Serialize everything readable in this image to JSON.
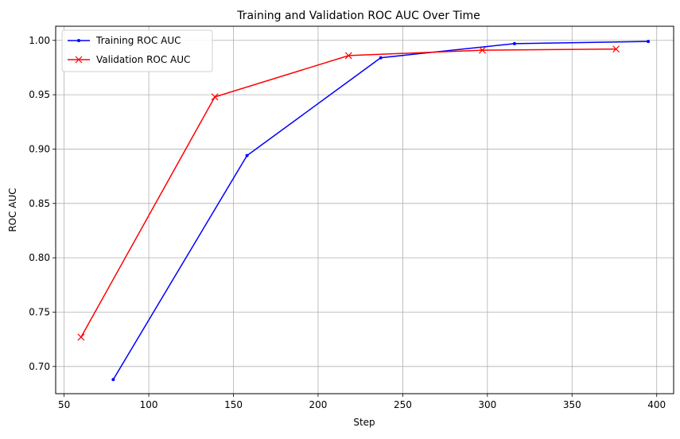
{
  "chart_data": {
    "type": "line",
    "title": "Training and Validation ROC AUC Over Time",
    "xlabel": "Step",
    "ylabel": "ROC AUC",
    "xlim": [
      45,
      410
    ],
    "ylim": [
      0.675,
      1.013
    ],
    "xticks": [
      50,
      100,
      150,
      200,
      250,
      300,
      350,
      400
    ],
    "yticks": [
      0.7,
      0.75,
      0.8,
      0.85,
      0.9,
      0.95,
      1.0
    ],
    "xtick_labels": [
      "50",
      "100",
      "150",
      "200",
      "250",
      "300",
      "350",
      "400"
    ],
    "ytick_labels": [
      "0.70",
      "0.75",
      "0.80",
      "0.85",
      "0.90",
      "0.95",
      "1.00"
    ],
    "grid": true,
    "legend_position": "top-left",
    "series": [
      {
        "name": "Training ROC AUC",
        "color": "#0000ff",
        "marker": "dot",
        "x": [
          79,
          158,
          237,
          316,
          395
        ],
        "y": [
          0.688,
          0.894,
          0.984,
          0.997,
          0.999
        ]
      },
      {
        "name": "Validation ROC AUC",
        "color": "#ff0000",
        "marker": "x",
        "x": [
          60,
          139,
          218,
          297,
          376
        ],
        "y": [
          0.727,
          0.948,
          0.986,
          0.991,
          0.992
        ]
      }
    ]
  }
}
